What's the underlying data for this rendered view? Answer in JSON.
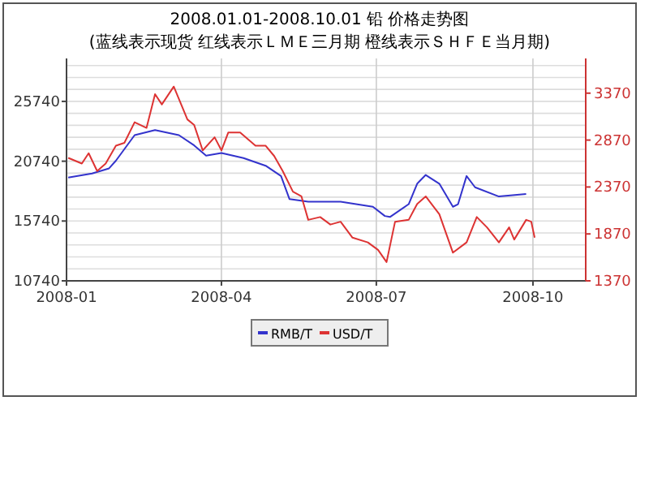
{
  "chart_data": {
    "type": "line",
    "title": "2008.01.01-2008.10.01 铅 价格走势图",
    "subtitle": "(蓝线表示现货 红线表示ＬＭＥ三月期 橙线表示ＳＨＦＥ当月期)",
    "xlim": [
      "2008-01-01",
      "2008-11-01"
    ],
    "xticks": [
      "2008-01",
      "2008-04",
      "2008-07",
      "2008-10"
    ],
    "ylim": [
      10740,
      29330
    ],
    "yticks": [
      10740,
      15740,
      20740,
      25740
    ],
    "y2lim": [
      1370,
      3740
    ],
    "y2ticks": [
      1370,
      1870,
      2370,
      2870,
      3370
    ],
    "grid": true,
    "legend": "bottom",
    "series": [
      {
        "name": "RMB/T",
        "color": "#3333cc",
        "x": [
          "2008-01-02",
          "2008-01-16",
          "2008-01-26",
          "2008-01-30",
          "2008-02-10",
          "2008-02-22",
          "2008-03-07",
          "2008-03-16",
          "2008-03-23",
          "2008-04-01",
          "2008-04-14",
          "2008-04-27",
          "2008-05-06",
          "2008-05-11",
          "2008-05-22",
          "2008-06-10",
          "2008-06-29",
          "2008-07-06",
          "2008-07-09",
          "2008-07-20",
          "2008-07-25",
          "2008-07-30",
          "2008-08-07",
          "2008-08-15",
          "2008-08-18",
          "2008-08-23",
          "2008-08-28",
          "2008-09-11",
          "2008-09-27"
        ],
        "values": [
          19370,
          19710,
          20140,
          20780,
          22920,
          23340,
          22920,
          22060,
          21200,
          21420,
          21000,
          20360,
          19500,
          17570,
          17360,
          17360,
          16930,
          16160,
          16080,
          17150,
          18860,
          19590,
          18860,
          16930,
          17150,
          19500,
          18560,
          17790,
          18000
        ]
      },
      {
        "name": "USD/T",
        "color": "#dd3333",
        "axis": "y2",
        "x": [
          "2008-01-02",
          "2008-01-10",
          "2008-01-14",
          "2008-01-19",
          "2008-01-24",
          "2008-01-30",
          "2008-02-04",
          "2008-02-10",
          "2008-02-17",
          "2008-02-22",
          "2008-02-26",
          "2008-03-04",
          "2008-03-12",
          "2008-03-16",
          "2008-03-21",
          "2008-03-28",
          "2008-04-01",
          "2008-04-05",
          "2008-04-12",
          "2008-04-21",
          "2008-04-27",
          "2008-05-02",
          "2008-05-07",
          "2008-05-13",
          "2008-05-18",
          "2008-05-22",
          "2008-05-29",
          "2008-06-04",
          "2008-06-10",
          "2008-06-17",
          "2008-06-26",
          "2008-07-02",
          "2008-07-07",
          "2008-07-12",
          "2008-07-20",
          "2008-07-25",
          "2008-07-30",
          "2008-08-07",
          "2008-08-15",
          "2008-08-23",
          "2008-08-29",
          "2008-09-04",
          "2008-09-11",
          "2008-09-17",
          "2008-09-20",
          "2008-09-27",
          "2008-09-30",
          "2008-10-02"
        ],
        "values": [
          2680,
          2620,
          2730,
          2540,
          2620,
          2810,
          2840,
          3060,
          3000,
          3360,
          3250,
          3440,
          3090,
          3030,
          2760,
          2900,
          2760,
          2950,
          2950,
          2810,
          2810,
          2700,
          2540,
          2320,
          2270,
          2020,
          2050,
          1970,
          2000,
          1830,
          1780,
          1700,
          1570,
          2000,
          2020,
          2190,
          2270,
          2080,
          1670,
          1780,
          2050,
          1940,
          1780,
          1940,
          1810,
          2020,
          2000,
          1830
        ]
      }
    ]
  }
}
